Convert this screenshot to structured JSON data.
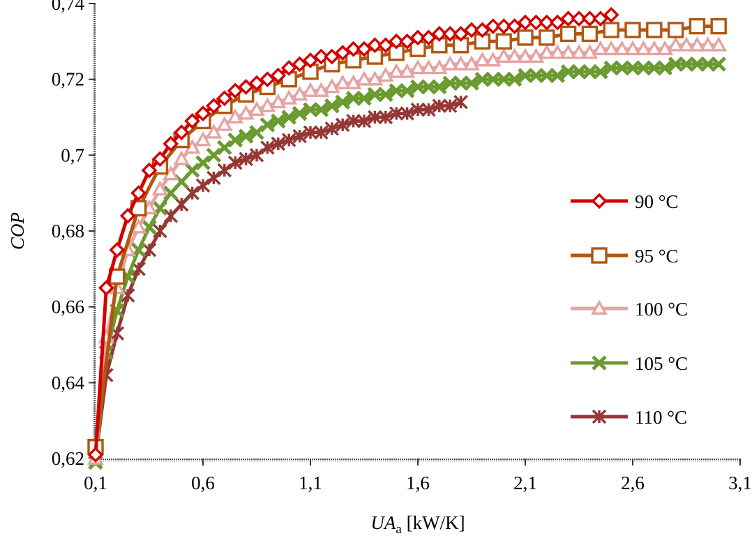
{
  "chart_data": {
    "type": "line",
    "xlabel": "UA",
    "xlabel_subscript": "a",
    "xlabel_unit": " [kW/K]",
    "ylabel": "COP",
    "xlim": [
      0.1,
      3.1
    ],
    "ylim": [
      0.62,
      0.74
    ],
    "xticks": [
      "0,1",
      "0,6",
      "1,1",
      "1,6",
      "2,1",
      "2,6",
      "3,1"
    ],
    "xtick_values": [
      0.1,
      0.6,
      1.1,
      1.6,
      2.1,
      2.6,
      3.1
    ],
    "yticks": [
      "0,62",
      "0,64",
      "0,66",
      "0,68",
      "0,7",
      "0,72",
      "0,74"
    ],
    "ytick_values": [
      0.62,
      0.64,
      0.66,
      0.68,
      0.7,
      0.72,
      0.74
    ],
    "grid": false,
    "legend_position": "right",
    "series": [
      {
        "name": "90 °C",
        "color": "#d40000",
        "marker": "diamond",
        "x": [
          0.1,
          0.15,
          0.2,
          0.25,
          0.3,
          0.35,
          0.4,
          0.45,
          0.5,
          0.55,
          0.6,
          0.65,
          0.7,
          0.75,
          0.8,
          0.85,
          0.9,
          0.95,
          1.0,
          1.05,
          1.1,
          1.15,
          1.2,
          1.25,
          1.3,
          1.35,
          1.4,
          1.45,
          1.5,
          1.55,
          1.6,
          1.65,
          1.7,
          1.75,
          1.8,
          1.85,
          1.9,
          1.95,
          2.0,
          2.05,
          2.1,
          2.15,
          2.2,
          2.25,
          2.3,
          2.35,
          2.4,
          2.45,
          2.5
        ],
        "y": [
          0.621,
          0.665,
          0.675,
          0.684,
          0.69,
          0.696,
          0.699,
          0.703,
          0.706,
          0.709,
          0.711,
          0.713,
          0.715,
          0.717,
          0.718,
          0.719,
          0.72,
          0.721,
          0.723,
          0.724,
          0.725,
          0.726,
          0.726,
          0.727,
          0.728,
          0.728,
          0.729,
          0.729,
          0.73,
          0.73,
          0.731,
          0.731,
          0.732,
          0.732,
          0.732,
          0.733,
          0.733,
          0.734,
          0.734,
          0.734,
          0.735,
          0.735,
          0.735,
          0.735,
          0.736,
          0.736,
          0.736,
          0.736,
          0.737
        ]
      },
      {
        "name": "95 °C",
        "color": "#b3560f",
        "marker": "square",
        "x": [
          0.1,
          0.2,
          0.3,
          0.4,
          0.5,
          0.6,
          0.7,
          0.8,
          0.9,
          1.0,
          1.1,
          1.2,
          1.3,
          1.4,
          1.5,
          1.6,
          1.7,
          1.8,
          1.9,
          2.0,
          2.1,
          2.2,
          2.3,
          2.4,
          2.5,
          2.6,
          2.7,
          2.8,
          2.9,
          3.0
        ],
        "y": [
          0.623,
          0.668,
          0.686,
          0.697,
          0.704,
          0.709,
          0.713,
          0.716,
          0.718,
          0.72,
          0.722,
          0.724,
          0.725,
          0.726,
          0.727,
          0.728,
          0.729,
          0.729,
          0.73,
          0.73,
          0.731,
          0.731,
          0.732,
          0.732,
          0.733,
          0.733,
          0.733,
          0.733,
          0.734,
          0.734
        ]
      },
      {
        "name": "100 °C",
        "color": "#e6a3a3",
        "marker": "triangle",
        "x": [
          0.1,
          0.15,
          0.2,
          0.25,
          0.3,
          0.35,
          0.4,
          0.45,
          0.5,
          0.55,
          0.6,
          0.65,
          0.7,
          0.75,
          0.8,
          0.85,
          0.9,
          0.95,
          1.0,
          1.05,
          1.1,
          1.15,
          1.2,
          1.25,
          1.3,
          1.35,
          1.4,
          1.45,
          1.5,
          1.55,
          1.6,
          1.65,
          1.7,
          1.75,
          1.8,
          1.85,
          1.9,
          1.95,
          2.0,
          2.05,
          2.1,
          2.15,
          2.2,
          2.25,
          2.3,
          2.35,
          2.4,
          2.45,
          2.5,
          2.55,
          2.6,
          2.65,
          2.7,
          2.75,
          2.8,
          2.85,
          2.9,
          2.95,
          3.0
        ],
        "y": [
          0.62,
          0.652,
          0.665,
          0.675,
          0.681,
          0.686,
          0.691,
          0.695,
          0.699,
          0.702,
          0.704,
          0.706,
          0.708,
          0.71,
          0.711,
          0.712,
          0.713,
          0.714,
          0.715,
          0.716,
          0.717,
          0.717,
          0.718,
          0.719,
          0.719,
          0.72,
          0.72,
          0.721,
          0.722,
          0.722,
          0.723,
          0.723,
          0.723,
          0.724,
          0.724,
          0.724,
          0.725,
          0.725,
          0.726,
          0.726,
          0.726,
          0.726,
          0.727,
          0.727,
          0.727,
          0.727,
          0.727,
          0.728,
          0.728,
          0.728,
          0.728,
          0.728,
          0.728,
          0.728,
          0.729,
          0.729,
          0.729,
          0.729,
          0.729
        ]
      },
      {
        "name": "105 °C",
        "color": "#6b9a30",
        "marker": "x",
        "x": [
          0.1,
          0.15,
          0.2,
          0.25,
          0.3,
          0.35,
          0.4,
          0.45,
          0.5,
          0.55,
          0.6,
          0.65,
          0.7,
          0.75,
          0.8,
          0.85,
          0.9,
          0.95,
          1.0,
          1.05,
          1.1,
          1.15,
          1.2,
          1.25,
          1.3,
          1.35,
          1.4,
          1.45,
          1.5,
          1.55,
          1.6,
          1.65,
          1.7,
          1.75,
          1.8,
          1.85,
          1.9,
          1.95,
          2.0,
          2.05,
          2.1,
          2.15,
          2.2,
          2.25,
          2.3,
          2.35,
          2.4,
          2.45,
          2.5,
          2.55,
          2.6,
          2.65,
          2.7,
          2.75,
          2.8,
          2.85,
          2.9,
          2.95,
          3.0
        ],
        "y": [
          0.619,
          0.648,
          0.659,
          0.668,
          0.675,
          0.681,
          0.686,
          0.69,
          0.693,
          0.696,
          0.698,
          0.7,
          0.702,
          0.704,
          0.705,
          0.706,
          0.708,
          0.709,
          0.71,
          0.711,
          0.712,
          0.712,
          0.713,
          0.714,
          0.715,
          0.715,
          0.716,
          0.716,
          0.717,
          0.717,
          0.718,
          0.718,
          0.718,
          0.719,
          0.719,
          0.719,
          0.72,
          0.72,
          0.72,
          0.72,
          0.721,
          0.721,
          0.721,
          0.721,
          0.722,
          0.722,
          0.722,
          0.722,
          0.723,
          0.723,
          0.723,
          0.723,
          0.723,
          0.723,
          0.724,
          0.724,
          0.724,
          0.724,
          0.724
        ]
      },
      {
        "name": "110 °C",
        "color": "#953735",
        "marker": "star",
        "x": [
          0.1,
          0.15,
          0.2,
          0.25,
          0.3,
          0.35,
          0.4,
          0.45,
          0.5,
          0.55,
          0.6,
          0.65,
          0.7,
          0.75,
          0.8,
          0.85,
          0.9,
          0.95,
          1.0,
          1.05,
          1.1,
          1.15,
          1.2,
          1.25,
          1.3,
          1.35,
          1.4,
          1.45,
          1.5,
          1.55,
          1.6,
          1.65,
          1.7,
          1.75,
          1.8
        ],
        "y": [
          0.62,
          0.642,
          0.653,
          0.663,
          0.67,
          0.675,
          0.68,
          0.684,
          0.687,
          0.69,
          0.692,
          0.694,
          0.696,
          0.698,
          0.699,
          0.7,
          0.702,
          0.703,
          0.704,
          0.705,
          0.706,
          0.706,
          0.707,
          0.708,
          0.709,
          0.709,
          0.71,
          0.71,
          0.711,
          0.711,
          0.712,
          0.712,
          0.713,
          0.713,
          0.714
        ]
      }
    ]
  }
}
